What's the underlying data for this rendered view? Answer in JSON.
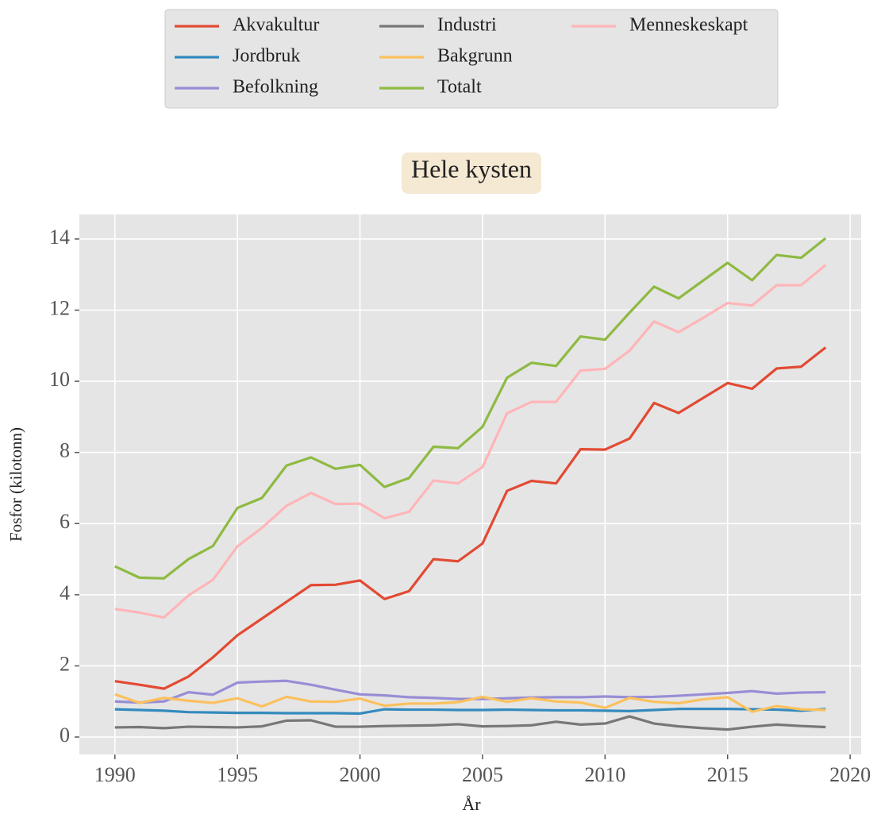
{
  "chart_data": {
    "type": "line",
    "title": "Hele kysten",
    "xlabel": "År",
    "ylabel": "Fosfor (kilotonn)",
    "x": [
      1990,
      1991,
      1992,
      1993,
      1994,
      1995,
      1996,
      1997,
      1998,
      1999,
      2000,
      2001,
      2002,
      2003,
      2004,
      2005,
      2006,
      2007,
      2008,
      2009,
      2010,
      2011,
      2012,
      2013,
      2014,
      2015,
      2016,
      2017,
      2018,
      2019
    ],
    "series": [
      {
        "name": "Akvakultur",
        "color": "#E24A33",
        "values": [
          1.57,
          1.47,
          1.36,
          1.7,
          2.24,
          2.86,
          3.33,
          3.8,
          4.27,
          4.28,
          4.4,
          3.88,
          4.1,
          5.0,
          4.94,
          5.44,
          6.92,
          7.2,
          7.13,
          8.09,
          8.08,
          8.39,
          9.39,
          9.11,
          9.53,
          9.95,
          9.79,
          10.36,
          10.41,
          10.95
        ]
      },
      {
        "name": "Jordbruk",
        "color": "#348ABD",
        "values": [
          0.78,
          0.76,
          0.74,
          0.7,
          0.69,
          0.68,
          0.68,
          0.67,
          0.67,
          0.67,
          0.66,
          0.78,
          0.77,
          0.77,
          0.76,
          0.76,
          0.77,
          0.76,
          0.75,
          0.75,
          0.74,
          0.73,
          0.76,
          0.79,
          0.79,
          0.79,
          0.78,
          0.77,
          0.74,
          0.79
        ]
      },
      {
        "name": "Befolkning",
        "color": "#988ED5",
        "values": [
          1.0,
          0.97,
          1.0,
          1.26,
          1.19,
          1.53,
          1.56,
          1.58,
          1.47,
          1.33,
          1.2,
          1.17,
          1.12,
          1.1,
          1.07,
          1.07,
          1.09,
          1.11,
          1.12,
          1.12,
          1.14,
          1.12,
          1.13,
          1.16,
          1.2,
          1.24,
          1.29,
          1.22,
          1.25,
          1.26
        ]
      },
      {
        "name": "Industri",
        "color": "#777777",
        "values": [
          0.27,
          0.28,
          0.25,
          0.29,
          0.28,
          0.27,
          0.3,
          0.46,
          0.47,
          0.29,
          0.29,
          0.31,
          0.32,
          0.33,
          0.36,
          0.3,
          0.31,
          0.33,
          0.43,
          0.35,
          0.38,
          0.58,
          0.38,
          0.3,
          0.25,
          0.21,
          0.29,
          0.35,
          0.31,
          0.28
        ]
      },
      {
        "name": "Bakgrunn",
        "color": "#FBC15E",
        "values": [
          1.2,
          0.96,
          1.1,
          1.02,
          0.96,
          1.09,
          0.86,
          1.13,
          1.0,
          0.99,
          1.08,
          0.88,
          0.94,
          0.94,
          0.98,
          1.13,
          0.99,
          1.09,
          1.0,
          0.97,
          0.82,
          1.1,
          0.99,
          0.95,
          1.06,
          1.12,
          0.71,
          0.87,
          0.78,
          0.76
        ]
      },
      {
        "name": "Totalt",
        "color": "#8EBA42",
        "values": [
          4.8,
          4.48,
          4.46,
          5.0,
          5.37,
          6.44,
          6.72,
          7.63,
          7.86,
          7.54,
          7.65,
          7.03,
          7.28,
          8.16,
          8.12,
          8.72,
          10.1,
          10.52,
          10.43,
          11.26,
          11.17,
          11.93,
          12.66,
          12.33,
          12.83,
          13.33,
          12.84,
          13.55,
          13.47,
          14.02
        ]
      },
      {
        "name": "Menneskeskapt",
        "color": "#FFB5B8",
        "values": [
          3.6,
          3.5,
          3.36,
          3.98,
          4.42,
          5.36,
          5.88,
          6.5,
          6.86,
          6.55,
          6.56,
          6.15,
          6.33,
          7.21,
          7.13,
          7.59,
          9.1,
          9.42,
          9.42,
          10.3,
          10.35,
          10.86,
          11.68,
          11.38,
          11.78,
          12.2,
          12.13,
          12.7,
          12.7,
          13.27
        ]
      }
    ],
    "xlim": [
      1988.55,
      2020.45
    ],
    "ylim": [
      -0.49,
      14.69
    ],
    "xticks": [
      1990,
      1995,
      2000,
      2005,
      2010,
      2015,
      2020
    ],
    "yticks": [
      0,
      2,
      4,
      6,
      8,
      10,
      12,
      14
    ],
    "grid": true,
    "legend_loc": "upper center",
    "legend_columns": 3
  }
}
